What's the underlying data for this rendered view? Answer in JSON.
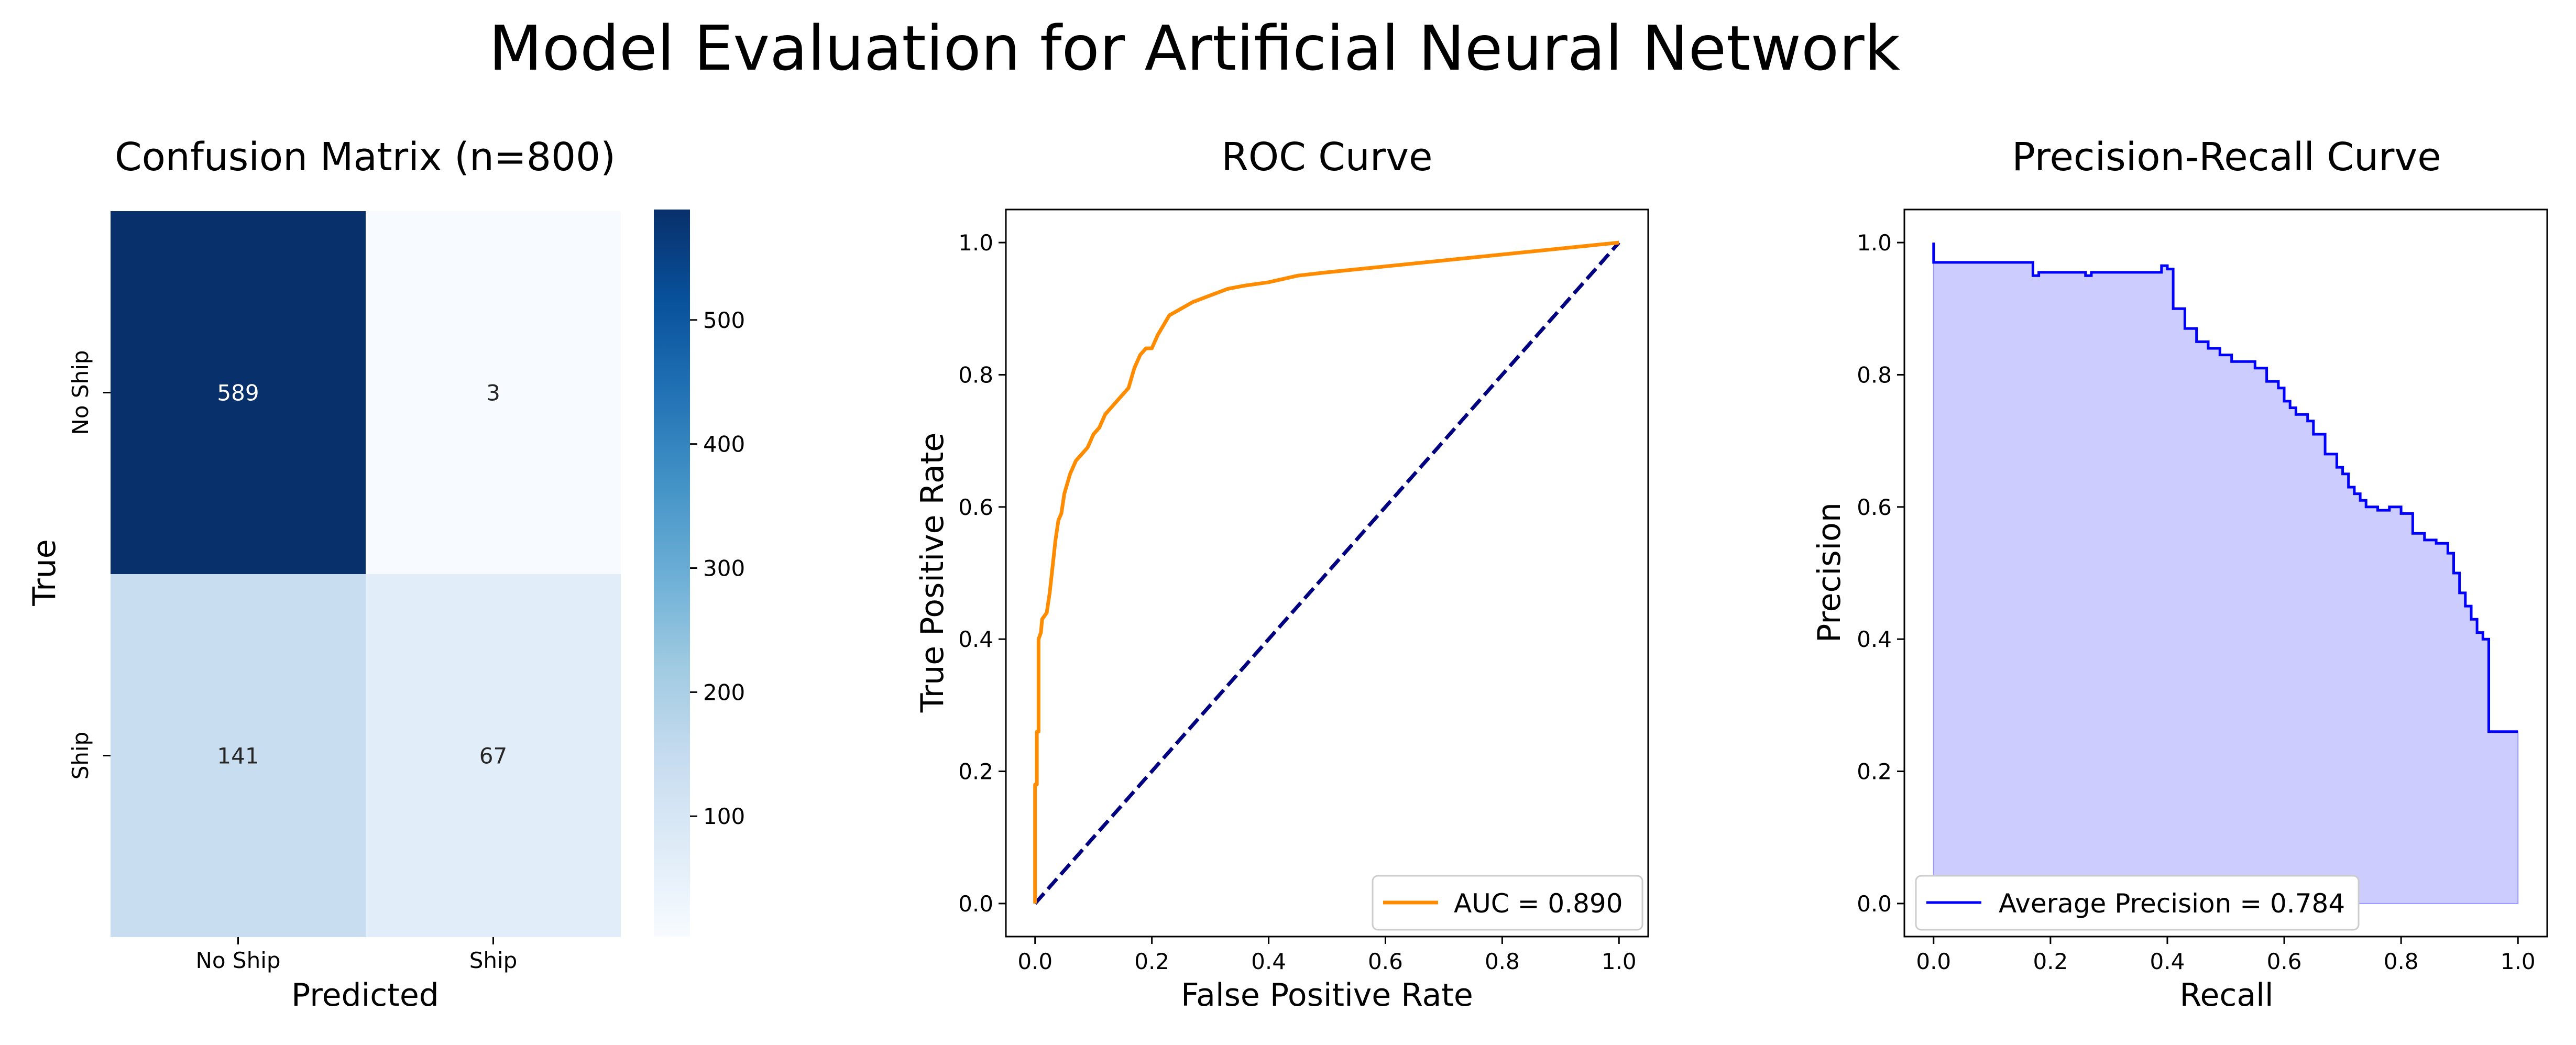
{
  "figure": {
    "title": "Model Evaluation for Artificial Neural Network"
  },
  "colors": {
    "cmap_low": "#f7fbff",
    "cmap_high": "#08306b",
    "roc": "#ff8c00",
    "diagonal": "#000080",
    "pr_line": "#0000ff",
    "pr_fill": "#ccccff"
  },
  "chart_data": [
    {
      "type": "heatmap",
      "title": "Confusion Matrix (n=800)",
      "xlabel": "Predicted",
      "ylabel": "True",
      "x_categories": [
        "No Ship",
        "Ship"
      ],
      "y_categories": [
        "No Ship",
        "Ship"
      ],
      "values": [
        [
          589,
          3
        ],
        [
          141,
          67
        ]
      ],
      "colorbar": {
        "ticks": [
          100,
          200,
          300,
          400,
          500
        ],
        "range": [
          3,
          589
        ]
      }
    },
    {
      "type": "line",
      "title": "ROC Curve",
      "xlabel": "False Positive Rate",
      "ylabel": "True Positive Rate",
      "xlim": [
        -0.05,
        1.05
      ],
      "ylim": [
        -0.05,
        1.05
      ],
      "xticks": [
        "0.0",
        "0.2",
        "0.4",
        "0.6",
        "0.8",
        "1.0"
      ],
      "yticks": [
        "0.0",
        "0.2",
        "0.4",
        "0.6",
        "0.8",
        "1.0"
      ],
      "legend_position": "lower right",
      "series": [
        {
          "name": "AUC = 0.890",
          "x": [
            0,
            0,
            0.003,
            0.003,
            0.006,
            0.006,
            0.01,
            0.012,
            0.02,
            0.025,
            0.03,
            0.035,
            0.04,
            0.045,
            0.05,
            0.06,
            0.07,
            0.08,
            0.09,
            0.1,
            0.11,
            0.12,
            0.13,
            0.14,
            0.15,
            0.16,
            0.17,
            0.18,
            0.19,
            0.2,
            0.21,
            0.23,
            0.25,
            0.27,
            0.3,
            0.33,
            0.36,
            0.4,
            0.45,
            0.5,
            1.0
          ],
          "y": [
            0,
            0.18,
            0.18,
            0.26,
            0.26,
            0.4,
            0.41,
            0.43,
            0.44,
            0.47,
            0.51,
            0.55,
            0.58,
            0.59,
            0.62,
            0.65,
            0.67,
            0.68,
            0.69,
            0.71,
            0.72,
            0.74,
            0.75,
            0.76,
            0.77,
            0.78,
            0.81,
            0.83,
            0.84,
            0.84,
            0.86,
            0.89,
            0.9,
            0.91,
            0.92,
            0.93,
            0.935,
            0.94,
            0.95,
            0.955,
            1.0
          ]
        },
        {
          "name": "",
          "x": [
            0,
            1
          ],
          "y": [
            0,
            1
          ]
        }
      ]
    },
    {
      "type": "area",
      "title": "Precision-Recall Curve",
      "xlabel": "Recall",
      "ylabel": "Precision",
      "xlim": [
        -0.05,
        1.05
      ],
      "ylim": [
        -0.05,
        1.05
      ],
      "xticks": [
        "0.0",
        "0.2",
        "0.4",
        "0.6",
        "0.8",
        "1.0"
      ],
      "yticks": [
        "0.0",
        "0.2",
        "0.4",
        "0.6",
        "0.8",
        "1.0"
      ],
      "legend_position": "lower left",
      "series": [
        {
          "name": "Average Precision = 0.784",
          "x": [
            0,
            0,
            0.17,
            0.17,
            0.18,
            0.26,
            0.27,
            0.39,
            0.4,
            0.41,
            0.41,
            0.43,
            0.45,
            0.47,
            0.49,
            0.51,
            0.53,
            0.55,
            0.57,
            0.59,
            0.6,
            0.61,
            0.62,
            0.63,
            0.64,
            0.65,
            0.67,
            0.69,
            0.7,
            0.71,
            0.72,
            0.73,
            0.74,
            0.76,
            0.78,
            0.8,
            0.82,
            0.84,
            0.86,
            0.88,
            0.89,
            0.9,
            0.91,
            0.92,
            0.93,
            0.94,
            0.95,
            0.95,
            1.0
          ],
          "y": [
            1.0,
            0.97,
            0.97,
            0.95,
            0.955,
            0.95,
            0.955,
            0.965,
            0.96,
            0.92,
            0.9,
            0.87,
            0.85,
            0.84,
            0.83,
            0.82,
            0.82,
            0.81,
            0.79,
            0.78,
            0.76,
            0.75,
            0.74,
            0.74,
            0.73,
            0.71,
            0.68,
            0.66,
            0.65,
            0.63,
            0.62,
            0.61,
            0.6,
            0.595,
            0.6,
            0.59,
            0.56,
            0.55,
            0.545,
            0.53,
            0.5,
            0.47,
            0.45,
            0.43,
            0.41,
            0.4,
            0.4,
            0.26,
            0.26
          ]
        }
      ]
    }
  ]
}
